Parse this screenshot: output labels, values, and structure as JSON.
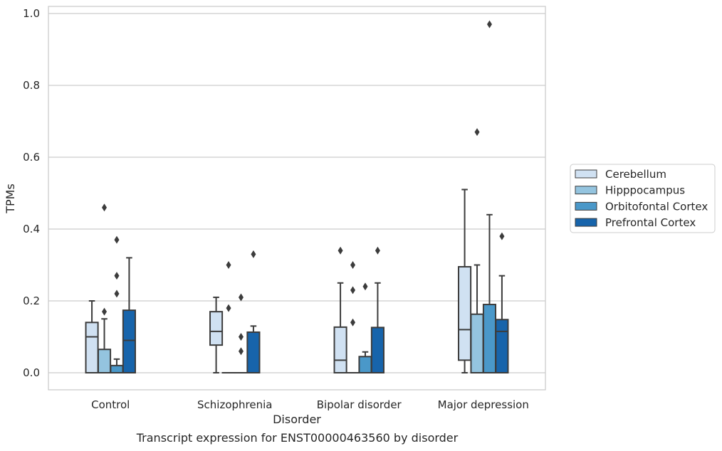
{
  "caption": "Transcript expression for ENST00000463560 by disorder",
  "chart_data": {
    "type": "box",
    "title": "",
    "xlabel": "Disorder",
    "ylabel": "TPMs",
    "ylim": [
      -0.046,
      1.02
    ],
    "yticks": [
      0.0,
      0.2,
      0.4,
      0.6,
      0.8,
      1.0
    ],
    "ytick_labels": [
      "0.0",
      "0.2",
      "0.4",
      "0.6",
      "0.8",
      "1.0"
    ],
    "grid": "horizontal",
    "legend_position": "outside-right",
    "categories": [
      "Control",
      "Schizophrenia",
      "Bipolar disorder",
      "Major depression"
    ],
    "series": [
      {
        "name": "Cerebellum",
        "color": "#d0e1f2",
        "boxes": [
          {
            "whislo": 0.0,
            "q1": 0.0,
            "med": 0.1,
            "q3": 0.14,
            "whishi": 0.2,
            "fliers": []
          },
          {
            "whislo": 0.0,
            "q1": 0.077,
            "med": 0.115,
            "q3": 0.17,
            "whishi": 0.21,
            "fliers": []
          },
          {
            "whislo": 0.0,
            "q1": 0.0,
            "med": 0.035,
            "q3": 0.127,
            "whishi": 0.25,
            "fliers": [
              0.34
            ]
          },
          {
            "whislo": 0.0,
            "q1": 0.035,
            "med": 0.12,
            "q3": 0.295,
            "whishi": 0.51,
            "fliers": []
          }
        ]
      },
      {
        "name": "Hipppocampus",
        "color": "#94c4df",
        "boxes": [
          {
            "whislo": 0.0,
            "q1": 0.0,
            "med": 0.0,
            "q3": 0.065,
            "whishi": 0.15,
            "fliers": [
              0.17,
              0.46
            ]
          },
          {
            "whislo": 0.0,
            "q1": 0.0,
            "med": 0.0,
            "q3": 0.0,
            "whishi": 0.0,
            "fliers": [
              0.18,
              0.3
            ]
          },
          {
            "whislo": 0.0,
            "q1": 0.0,
            "med": 0.0,
            "q3": 0.0,
            "whishi": 0.0,
            "fliers": [
              0.14,
              0.23,
              0.3
            ]
          },
          {
            "whislo": 0.0,
            "q1": 0.0,
            "med": 0.0,
            "q3": 0.163,
            "whishi": 0.3,
            "fliers": [
              0.67
            ]
          }
        ]
      },
      {
        "name": "Orbitofontal Cortex",
        "color": "#4a98c9",
        "boxes": [
          {
            "whislo": 0.0,
            "q1": 0.0,
            "med": 0.0,
            "q3": 0.02,
            "whishi": 0.038,
            "fliers": [
              0.22,
              0.27,
              0.37
            ]
          },
          {
            "whislo": 0.0,
            "q1": 0.0,
            "med": 0.0,
            "q3": 0.0,
            "whishi": 0.0,
            "fliers": [
              0.06,
              0.1,
              0.21
            ]
          },
          {
            "whislo": 0.0,
            "q1": 0.0,
            "med": 0.0,
            "q3": 0.045,
            "whishi": 0.058,
            "fliers": [
              0.24
            ]
          },
          {
            "whislo": 0.0,
            "q1": 0.0,
            "med": 0.0,
            "q3": 0.19,
            "whishi": 0.44,
            "fliers": [
              0.97
            ]
          }
        ]
      },
      {
        "name": "Prefrontal Cortex",
        "color": "#1764ab",
        "boxes": [
          {
            "whislo": 0.0,
            "q1": 0.0,
            "med": 0.09,
            "q3": 0.174,
            "whishi": 0.32,
            "fliers": []
          },
          {
            "whislo": 0.0,
            "q1": 0.0,
            "med": 0.0,
            "q3": 0.113,
            "whishi": 0.13,
            "fliers": [
              0.33
            ]
          },
          {
            "whislo": 0.0,
            "q1": 0.0,
            "med": 0.0,
            "q3": 0.126,
            "whishi": 0.25,
            "fliers": [
              0.34
            ]
          },
          {
            "whislo": 0.0,
            "q1": 0.0,
            "med": 0.115,
            "q3": 0.148,
            "whishi": 0.27,
            "fliers": [
              0.38
            ]
          }
        ]
      }
    ]
  }
}
